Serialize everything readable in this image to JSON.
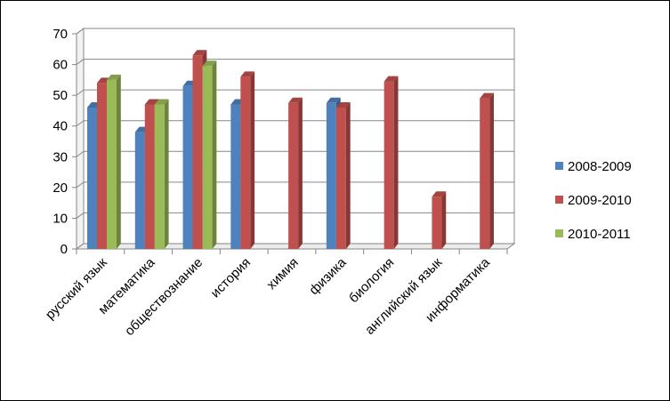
{
  "chart_data": {
    "type": "bar",
    "title": "",
    "xlabel": "",
    "ylabel": "",
    "ylim": [
      0,
      70
    ],
    "yticks": [
      0,
      10,
      20,
      30,
      40,
      50,
      60,
      70
    ],
    "grid": true,
    "legend_position": "right",
    "categories": [
      "русский язык",
      "математика",
      "обществознание",
      "история",
      "химия",
      "физика",
      "биология",
      "английский язык",
      "информатика"
    ],
    "series": [
      {
        "name": "2008-2009",
        "color": "#4F81BD",
        "values": [
          46,
          38,
          53,
          47,
          null,
          47.5,
          null,
          null,
          null
        ]
      },
      {
        "name": "2009-2010",
        "color": "#C0504D",
        "values": [
          54,
          47,
          63,
          56,
          47.5,
          46,
          54.5,
          17,
          49
        ]
      },
      {
        "name": "2010-2011",
        "color": "#9BBB59",
        "values": [
          55,
          47,
          59.5,
          null,
          null,
          null,
          null,
          null,
          null
        ]
      }
    ]
  }
}
